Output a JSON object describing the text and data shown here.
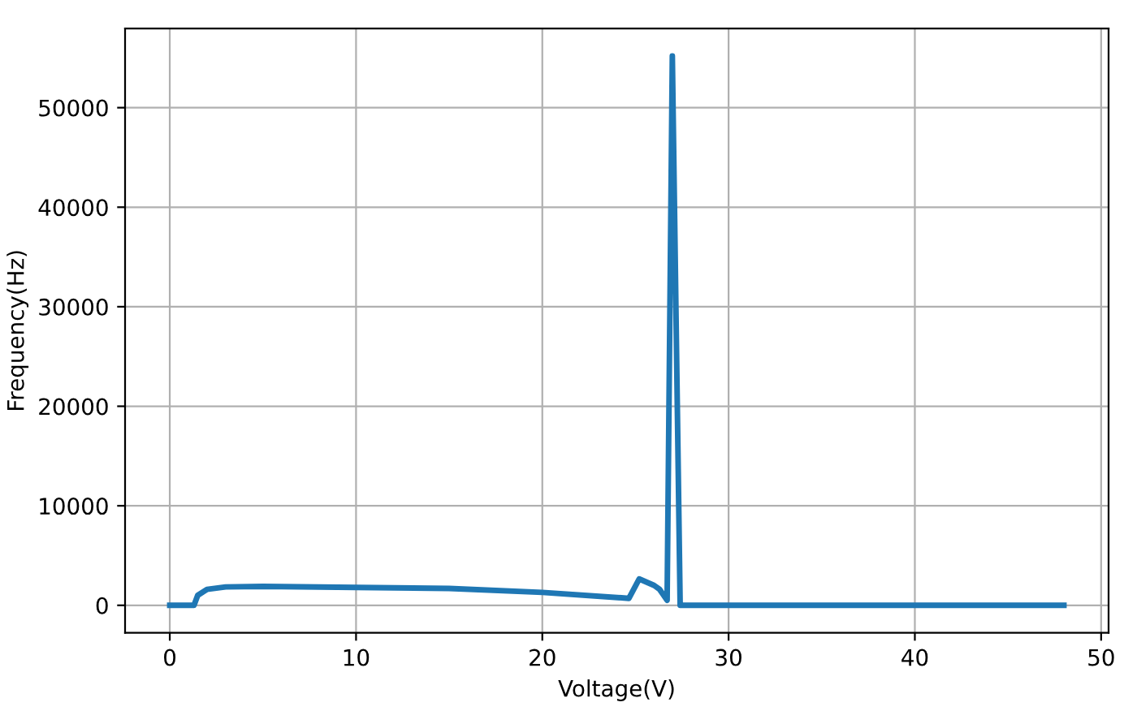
{
  "chart_data": {
    "type": "line",
    "xlabel": "Voltage(V)",
    "ylabel": "Frequency(Hz)",
    "xlim": [
      -2.4,
      50.4
    ],
    "xticks": [
      0,
      10,
      20,
      30,
      40,
      50
    ],
    "ylim": [
      -2760,
      57960
    ],
    "yticks": [
      0,
      10000,
      20000,
      30000,
      40000,
      50000
    ],
    "grid": true,
    "line_style": "solid",
    "series": [
      {
        "color": "#1f77b4",
        "x": [
          0,
          1.3,
          1.5,
          2,
          3,
          5,
          10,
          15,
          20,
          24.65,
          25.2,
          26.0,
          26.3,
          26.7,
          26.98,
          27.4,
          48
        ],
        "values": [
          0,
          0,
          1000,
          1600,
          1850,
          1900,
          1800,
          1700,
          1300,
          700,
          2650,
          2000,
          1600,
          500,
          55200,
          0,
          0
        ]
      }
    ]
  }
}
